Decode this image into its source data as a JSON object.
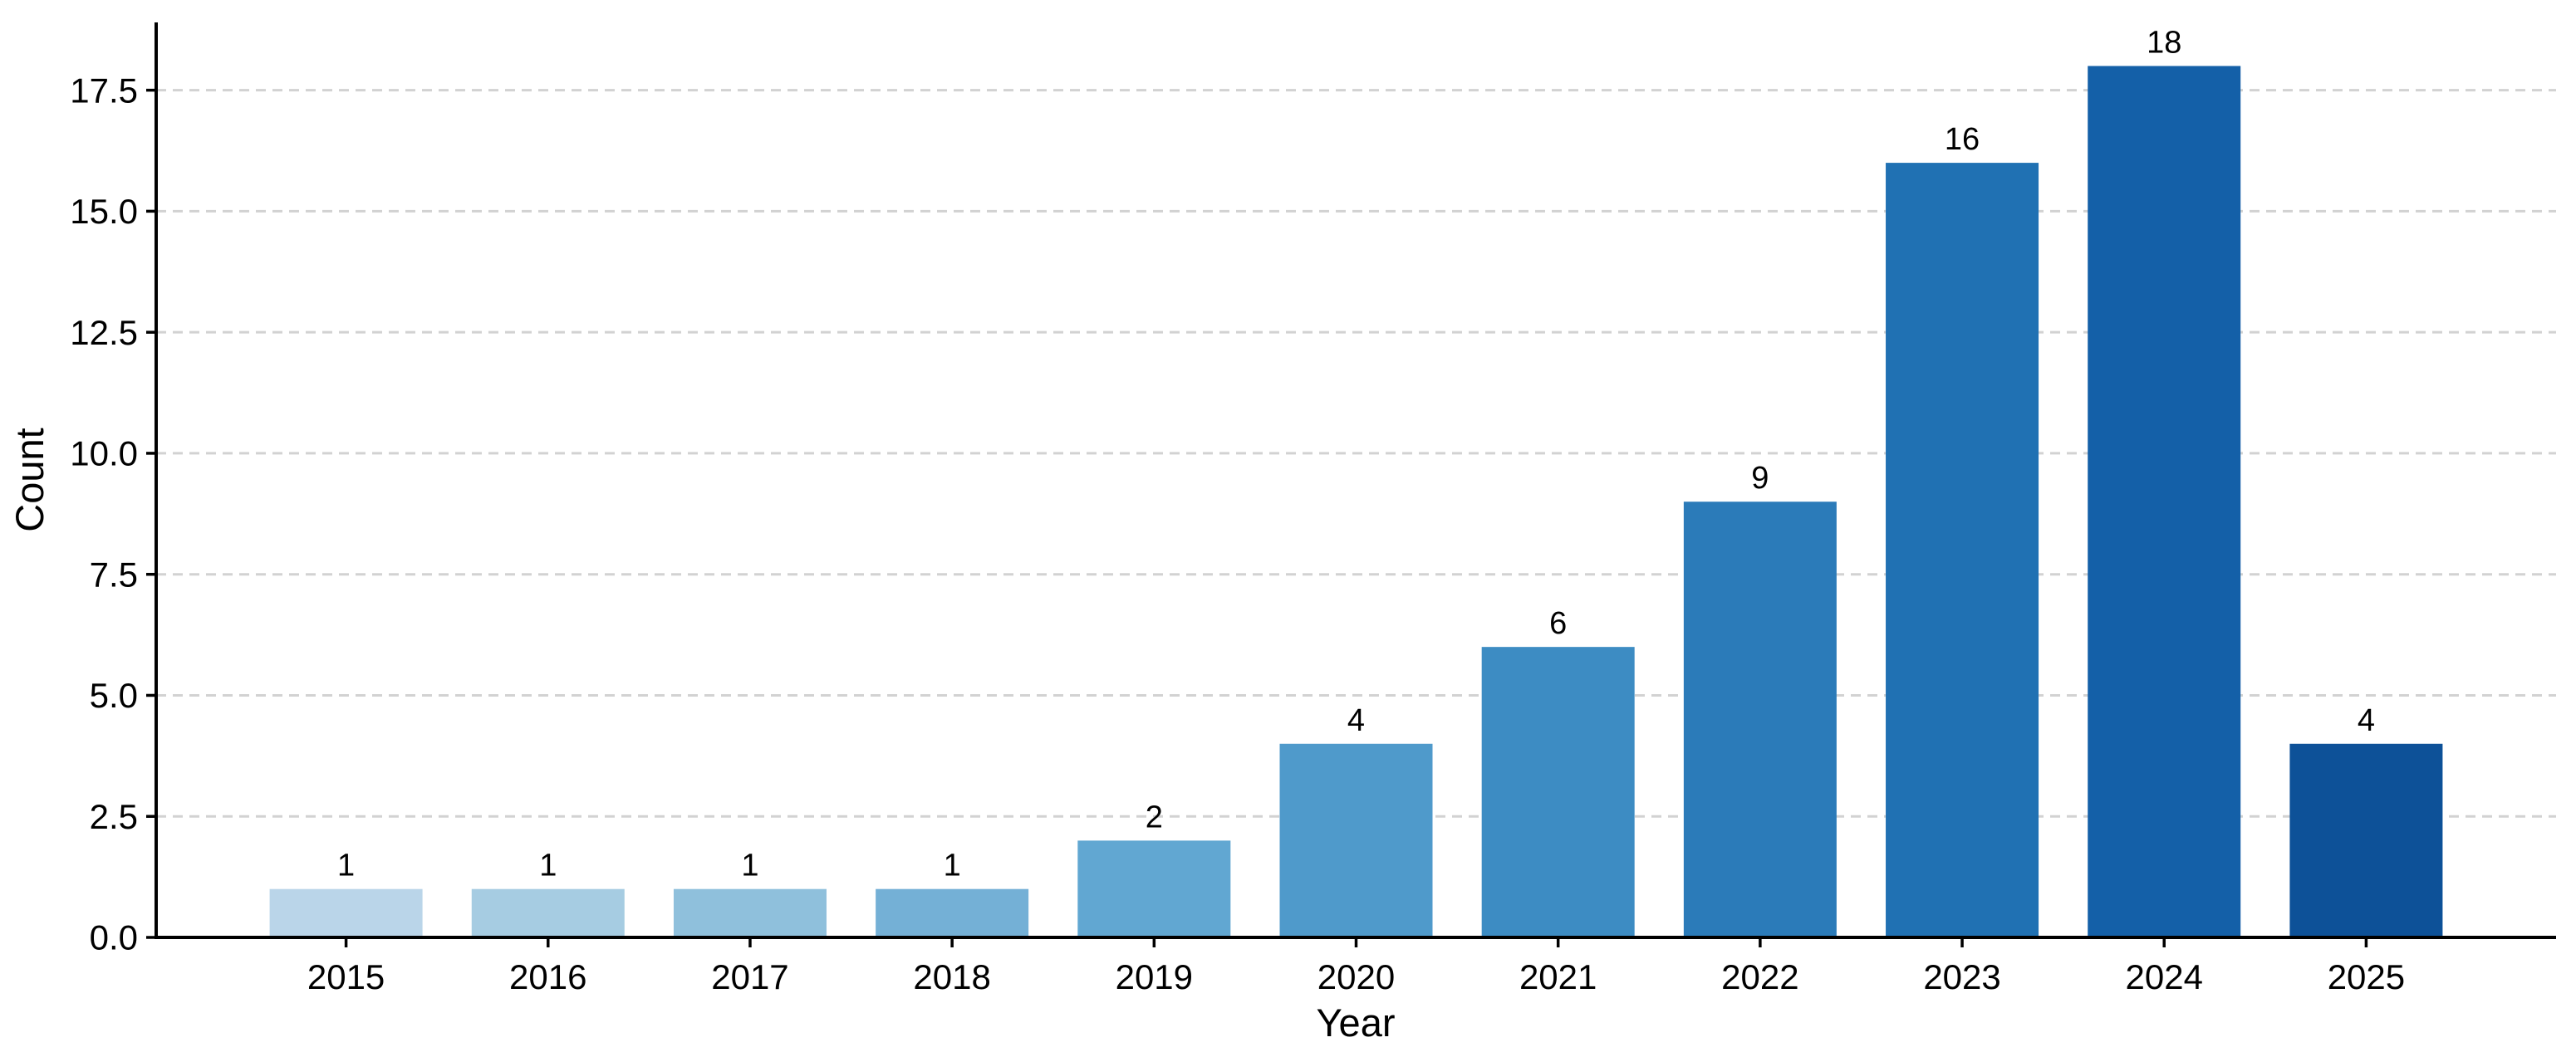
{
  "chart_data": {
    "type": "bar",
    "title": "",
    "xlabel": "Year",
    "ylabel": "Count",
    "categories": [
      "2015",
      "2016",
      "2017",
      "2018",
      "2019",
      "2020",
      "2021",
      "2022",
      "2023",
      "2024",
      "2025"
    ],
    "values": [
      1,
      1,
      1,
      1,
      2,
      4,
      6,
      9,
      16,
      18,
      4
    ],
    "bar_value_labels": [
      "1",
      "1",
      "1",
      "1",
      "2",
      "4",
      "6",
      "9",
      "16",
      "18",
      "4"
    ],
    "bar_colors": [
      "#bad5e9",
      "#a6cce2",
      "#8fc0dc",
      "#74b0d6",
      "#61a7d2",
      "#4f9acb",
      "#3d8cc3",
      "#2b7bb9",
      "#2071b3",
      "#1460a8",
      "#0d5198"
    ],
    "ylim": [
      0,
      18.9
    ],
    "yticks": {
      "values": [
        0,
        2.5,
        5,
        7.5,
        10,
        12.5,
        15,
        17.5
      ],
      "labels": [
        "0.0",
        "2.5",
        "5.0",
        "7.5",
        "10.0",
        "12.5",
        "15.0",
        "17.5"
      ]
    },
    "grid": "horizontal-dashed",
    "gridline_color": "#d2d2d2",
    "axis_color": "#000000",
    "text_color": "#000000",
    "background_color": "#ffffff",
    "legend": "none"
  }
}
